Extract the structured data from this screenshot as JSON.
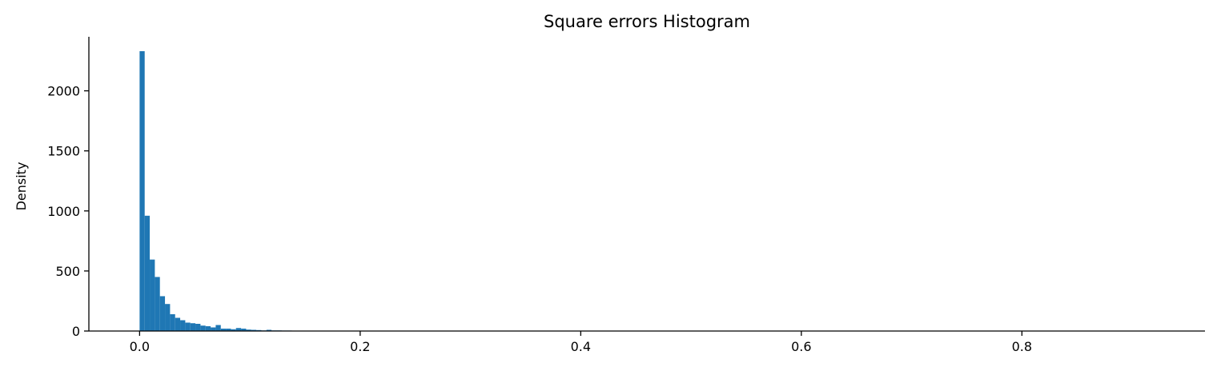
{
  "chart_data": {
    "type": "bar",
    "title": "Square errors Histogram",
    "xlabel": "",
    "ylabel": "Density",
    "xlim": [
      -0.046,
      0.966
    ],
    "ylim": [
      0,
      2450
    ],
    "x_ticks": [
      0.0,
      0.2,
      0.4,
      0.6,
      0.8
    ],
    "x_tick_labels": [
      "0.0",
      "0.2",
      "0.4",
      "0.6",
      "0.8"
    ],
    "y_ticks": [
      0,
      500,
      1000,
      1500,
      2000
    ],
    "y_tick_labels": [
      "0",
      "500",
      "1000",
      "1500",
      "2000"
    ],
    "bin_width": 0.0046,
    "bin_start": 0.0,
    "values": [
      2330,
      960,
      595,
      450,
      290,
      225,
      140,
      110,
      90,
      70,
      65,
      60,
      45,
      40,
      30,
      50,
      20,
      20,
      15,
      25,
      20,
      12,
      10,
      8,
      5,
      10,
      5,
      5,
      4,
      4,
      3,
      3,
      2,
      2,
      2,
      1,
      1,
      1,
      1,
      1
    ],
    "bar_color": "#1f77b4",
    "grid": false,
    "spines": [
      "left",
      "bottom"
    ],
    "legend": "none"
  }
}
